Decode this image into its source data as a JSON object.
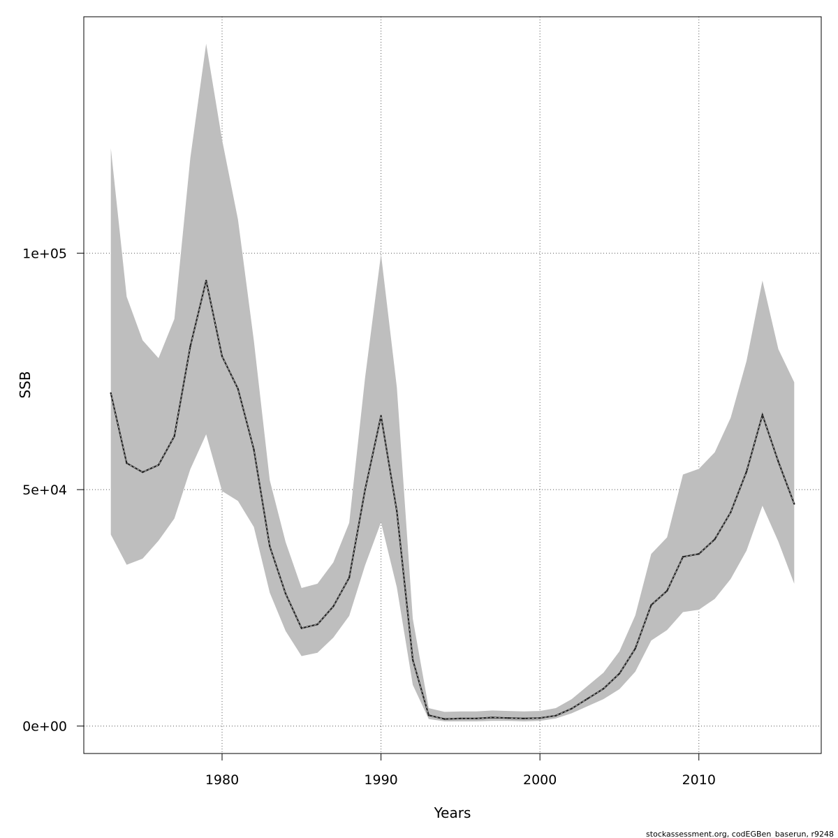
{
  "chart_data": {
    "type": "line",
    "xlabel": "Years",
    "ylabel": "SSB",
    "footer": "stockassessment.org, codEGBen_baserun, r9248",
    "xlim": [
      1971.3,
      2017.7
    ],
    "ylim": [
      -5800,
      150000
    ],
    "x_ticks": [
      1980,
      1990,
      2000,
      2010
    ],
    "x_tick_labels": [
      "1980",
      "1990",
      "2000",
      "2010"
    ],
    "y_ticks": [
      0,
      50000,
      100000
    ],
    "y_tick_labels": [
      "0e+00",
      "5e+04",
      "1e+05"
    ],
    "grid": true,
    "colors": {
      "band": "#bebebe",
      "line": "#222222",
      "grid": "#555555"
    },
    "x": [
      1973,
      1974,
      1975,
      1976,
      1977,
      1978,
      1979,
      1980,
      1981,
      1982,
      1983,
      1984,
      1985,
      1986,
      1987,
      1988,
      1989,
      1990,
      1991,
      1992,
      1993,
      1994,
      1995,
      1996,
      1997,
      1998,
      1999,
      2000,
      2001,
      2002,
      2003,
      2004,
      2005,
      2006,
      2007,
      2008,
      2009,
      2010,
      2011,
      2012,
      2013,
      2014,
      2015,
      2016
    ],
    "series": [
      {
        "values": [
          70400,
          55600,
          53700,
          55200,
          61300,
          80300,
          94200,
          78200,
          71300,
          58500,
          38000,
          28000,
          20700,
          21500,
          25300,
          31400,
          50000,
          65600,
          45400,
          14000,
          2300,
          1500,
          1600,
          1600,
          1800,
          1700,
          1600,
          1700,
          2200,
          3700,
          5800,
          7900,
          11100,
          16400,
          25600,
          28600,
          35800,
          36400,
          39500,
          45200,
          53800,
          65800,
          55900,
          47000
        ],
        "lower": [
          40500,
          34100,
          35400,
          39200,
          43900,
          54300,
          61700,
          49700,
          47600,
          42100,
          28200,
          20100,
          14800,
          15500,
          18700,
          23300,
          34000,
          43100,
          29300,
          8700,
          1500,
          1000,
          1000,
          1000,
          1100,
          1100,
          1000,
          1100,
          1600,
          2700,
          4200,
          5700,
          7800,
          11500,
          18100,
          20300,
          24100,
          24600,
          26900,
          31100,
          37100,
          46600,
          39000,
          30100
        ],
        "upper": [
          122200,
          90800,
          81600,
          77800,
          86100,
          120100,
          144300,
          124000,
          107100,
          81500,
          52000,
          38900,
          29200,
          30100,
          34600,
          43000,
          73700,
          99800,
          71600,
          22700,
          3800,
          3000,
          3100,
          3100,
          3300,
          3200,
          3100,
          3200,
          3800,
          5700,
          8500,
          11300,
          15800,
          23400,
          36400,
          39900,
          53200,
          54400,
          57900,
          65200,
          77200,
          94200,
          79700,
          72700
        ]
      }
    ]
  }
}
